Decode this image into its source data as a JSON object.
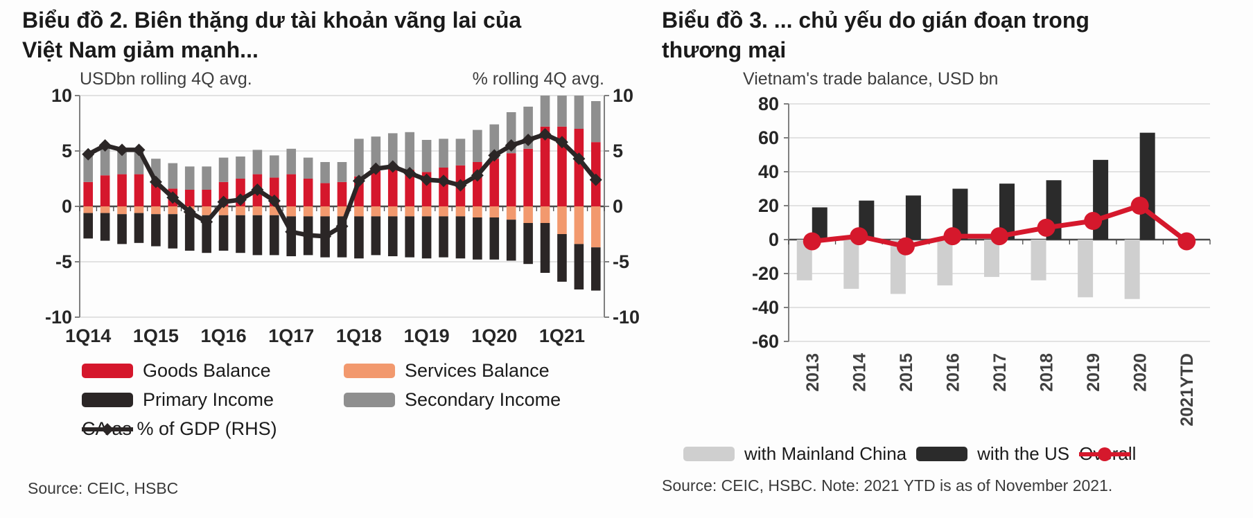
{
  "colors": {
    "goods": "#d5172c",
    "services": "#f2996e",
    "primary": "#2b2626",
    "secondary": "#8f8f8f",
    "ca_line": "#2b2626",
    "china": "#cfcfcf",
    "us": "#2b2b2b",
    "overall": "#d5182c",
    "grid": "#d9d9d9",
    "axis": "#7f7f7f",
    "zero": "#4a4a4a"
  },
  "left_panel": {
    "title_line1": "Biểu đồ 2. Biên thặng dư tài khoản vãng lai của",
    "title_line2": "Việt Nam giảm mạnh...",
    "axis_left_title": "USDbn rolling 4Q avg.",
    "axis_right_title": "% rolling 4Q avg.",
    "source": "Source: CEIC, HSBC",
    "legend": [
      {
        "label": "Goods Balance"
      },
      {
        "label": "Services Balance"
      },
      {
        "label": "Primary Income"
      },
      {
        "label": "Secondary Income"
      },
      {
        "label": "CA as % of GDP (RHS)"
      }
    ]
  },
  "right_panel": {
    "title_line1": "Biểu đồ 3. ... chủ yếu do gián đoạn trong",
    "title_line2": "thương mại",
    "subtitle": "Vietnam's trade balance, USD bn",
    "source": "Source: CEIC, HSBC. Note: 2021 YTD is as of November 2021.",
    "legend": [
      {
        "label": "with Mainland China"
      },
      {
        "label": "with the US"
      },
      {
        "label": "Overall"
      }
    ]
  },
  "chart_data": [
    {
      "type": "bar",
      "subtype": "stacked-bar-with-line",
      "title": "Biểu đồ 2. Biên thặng dư tài khoản vãng lai của Việt Nam giảm mạnh...",
      "ylabel_left": "USDbn rolling 4Q avg.",
      "ylabel_right": "% rolling 4Q avg.",
      "ylim": [
        -10,
        10
      ],
      "yticks": [
        10,
        5,
        0,
        -5,
        -10
      ],
      "grid": true,
      "legend_position": "bottom",
      "categories": [
        "1Q14",
        "2Q14",
        "3Q14",
        "4Q14",
        "1Q15",
        "2Q15",
        "3Q15",
        "4Q15",
        "1Q16",
        "2Q16",
        "3Q16",
        "4Q16",
        "1Q17",
        "2Q17",
        "3Q17",
        "4Q17",
        "1Q18",
        "2Q18",
        "3Q18",
        "4Q18",
        "1Q19",
        "2Q19",
        "3Q19",
        "4Q19",
        "1Q20",
        "2Q20",
        "3Q20",
        "4Q20",
        "1Q21",
        "2Q21",
        "3Q21"
      ],
      "x_tick_labels": [
        "1Q14",
        "1Q15",
        "1Q16",
        "1Q17",
        "1Q18",
        "1Q19",
        "1Q20",
        "1Q21"
      ],
      "x_tick_indices": [
        0,
        4,
        8,
        12,
        16,
        20,
        24,
        28
      ],
      "series": [
        {
          "name": "Goods Balance",
          "kind": "bar",
          "color": "#d5172c",
          "values": [
            2.2,
            2.8,
            2.9,
            2.9,
            2.0,
            1.6,
            1.5,
            1.5,
            2.2,
            2.5,
            2.9,
            2.6,
            2.9,
            2.5,
            2.1,
            2.2,
            2.7,
            3.2,
            3.5,
            3.3,
            3.1,
            3.5,
            3.7,
            4.0,
            4.3,
            4.8,
            5.2,
            7.2,
            7.2,
            7.0,
            5.8
          ]
        },
        {
          "name": "Services Balance",
          "kind": "bar",
          "color": "#f2996e",
          "values": [
            -0.6,
            -0.6,
            -0.7,
            -0.6,
            -0.7,
            -0.7,
            -0.7,
            -0.8,
            -0.8,
            -0.8,
            -0.8,
            -0.8,
            -0.9,
            -0.9,
            -0.9,
            -0.9,
            -0.9,
            -0.9,
            -0.9,
            -0.9,
            -0.9,
            -0.9,
            -0.9,
            -1.0,
            -1.0,
            -1.2,
            -1.5,
            -1.5,
            -2.5,
            -3.4,
            -3.7
          ]
        },
        {
          "name": "Primary Income",
          "kind": "bar",
          "color": "#2b2626",
          "values": [
            -2.3,
            -2.5,
            -2.7,
            -2.7,
            -2.9,
            -3.1,
            -3.3,
            -3.4,
            -3.2,
            -3.4,
            -3.6,
            -3.6,
            -3.6,
            -3.5,
            -3.7,
            -3.7,
            -3.8,
            -3.5,
            -3.6,
            -3.7,
            -3.8,
            -3.7,
            -3.8,
            -3.8,
            -3.8,
            -3.7,
            -3.7,
            -4.5,
            -4.3,
            -4.1,
            -3.9
          ]
        },
        {
          "name": "Secondary Income",
          "kind": "bar",
          "color": "#8f8f8f",
          "values": [
            2.4,
            2.5,
            2.2,
            2.1,
            2.3,
            2.3,
            2.1,
            2.1,
            2.2,
            2.0,
            2.2,
            2.0,
            2.3,
            1.9,
            1.9,
            1.8,
            3.4,
            3.1,
            3.1,
            3.4,
            2.9,
            2.6,
            2.4,
            2.9,
            3.1,
            3.7,
            3.8,
            2.8,
            2.8,
            3.0,
            3.7
          ]
        },
        {
          "name": "CA as % of GDP (RHS)",
          "kind": "line",
          "marker": "diamond",
          "color": "#2b2626",
          "values": [
            4.7,
            5.5,
            5.1,
            5.1,
            2.2,
            0.8,
            -0.5,
            -1.4,
            0.4,
            0.6,
            1.5,
            0.5,
            -2.3,
            -2.6,
            -2.7,
            -1.8,
            2.3,
            3.4,
            3.6,
            3.0,
            2.4,
            2.3,
            1.9,
            2.8,
            4.6,
            5.5,
            6.0,
            6.5,
            5.8,
            4.3,
            2.4
          ]
        }
      ]
    },
    {
      "type": "bar",
      "subtype": "grouped-bar-with-line",
      "title": "Biểu đồ 3. ... chủ yếu do gián đoạn trong thương mại",
      "subtitle": "Vietnam's trade balance, USD bn",
      "ylim": [
        -60,
        80
      ],
      "yticks": [
        80,
        60,
        40,
        20,
        0,
        -20,
        -40,
        -60
      ],
      "grid": true,
      "legend_position": "bottom",
      "categories": [
        "2013",
        "2014",
        "2015",
        "2016",
        "2017",
        "2018",
        "2019",
        "2020",
        "2021YTD"
      ],
      "series": [
        {
          "name": "with Mainland China",
          "kind": "bar",
          "color": "#cfcfcf",
          "values": [
            -24,
            -29,
            -32,
            -27,
            -22,
            -24,
            -34,
            -35,
            null
          ]
        },
        {
          "name": "with the US",
          "kind": "bar",
          "color": "#2b2b2b",
          "values": [
            19,
            23,
            26,
            30,
            33,
            35,
            47,
            63,
            null
          ]
        },
        {
          "name": "Overall",
          "kind": "line",
          "marker": "circle",
          "color": "#d5182c",
          "values": [
            -1,
            2,
            -4,
            2,
            2,
            7,
            11,
            20,
            -1
          ]
        }
      ]
    }
  ]
}
